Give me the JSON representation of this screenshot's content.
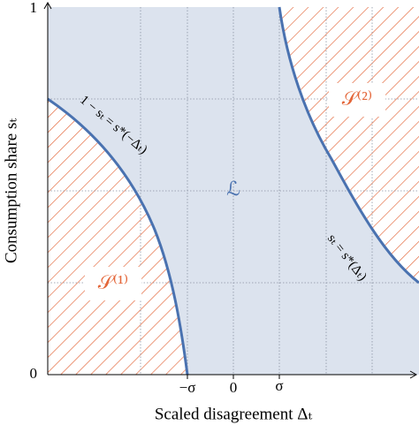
{
  "axes": {
    "x_label": "Scaled disagreement Δₜ",
    "y_label": "Consumption share sₜ",
    "x_ticks": [
      "−σ",
      "0",
      "σ"
    ],
    "y_ticks": [
      "0",
      "1"
    ]
  },
  "regions": {
    "lower_left": "𝒮⁽¹⁾",
    "upper_right": "𝒮⁽²⁾",
    "middle": "ℒ"
  },
  "curves": {
    "left": "1 − sₜ = s*(−Δₜ)",
    "right": "sₜ = s*(Δₜ)"
  }
}
